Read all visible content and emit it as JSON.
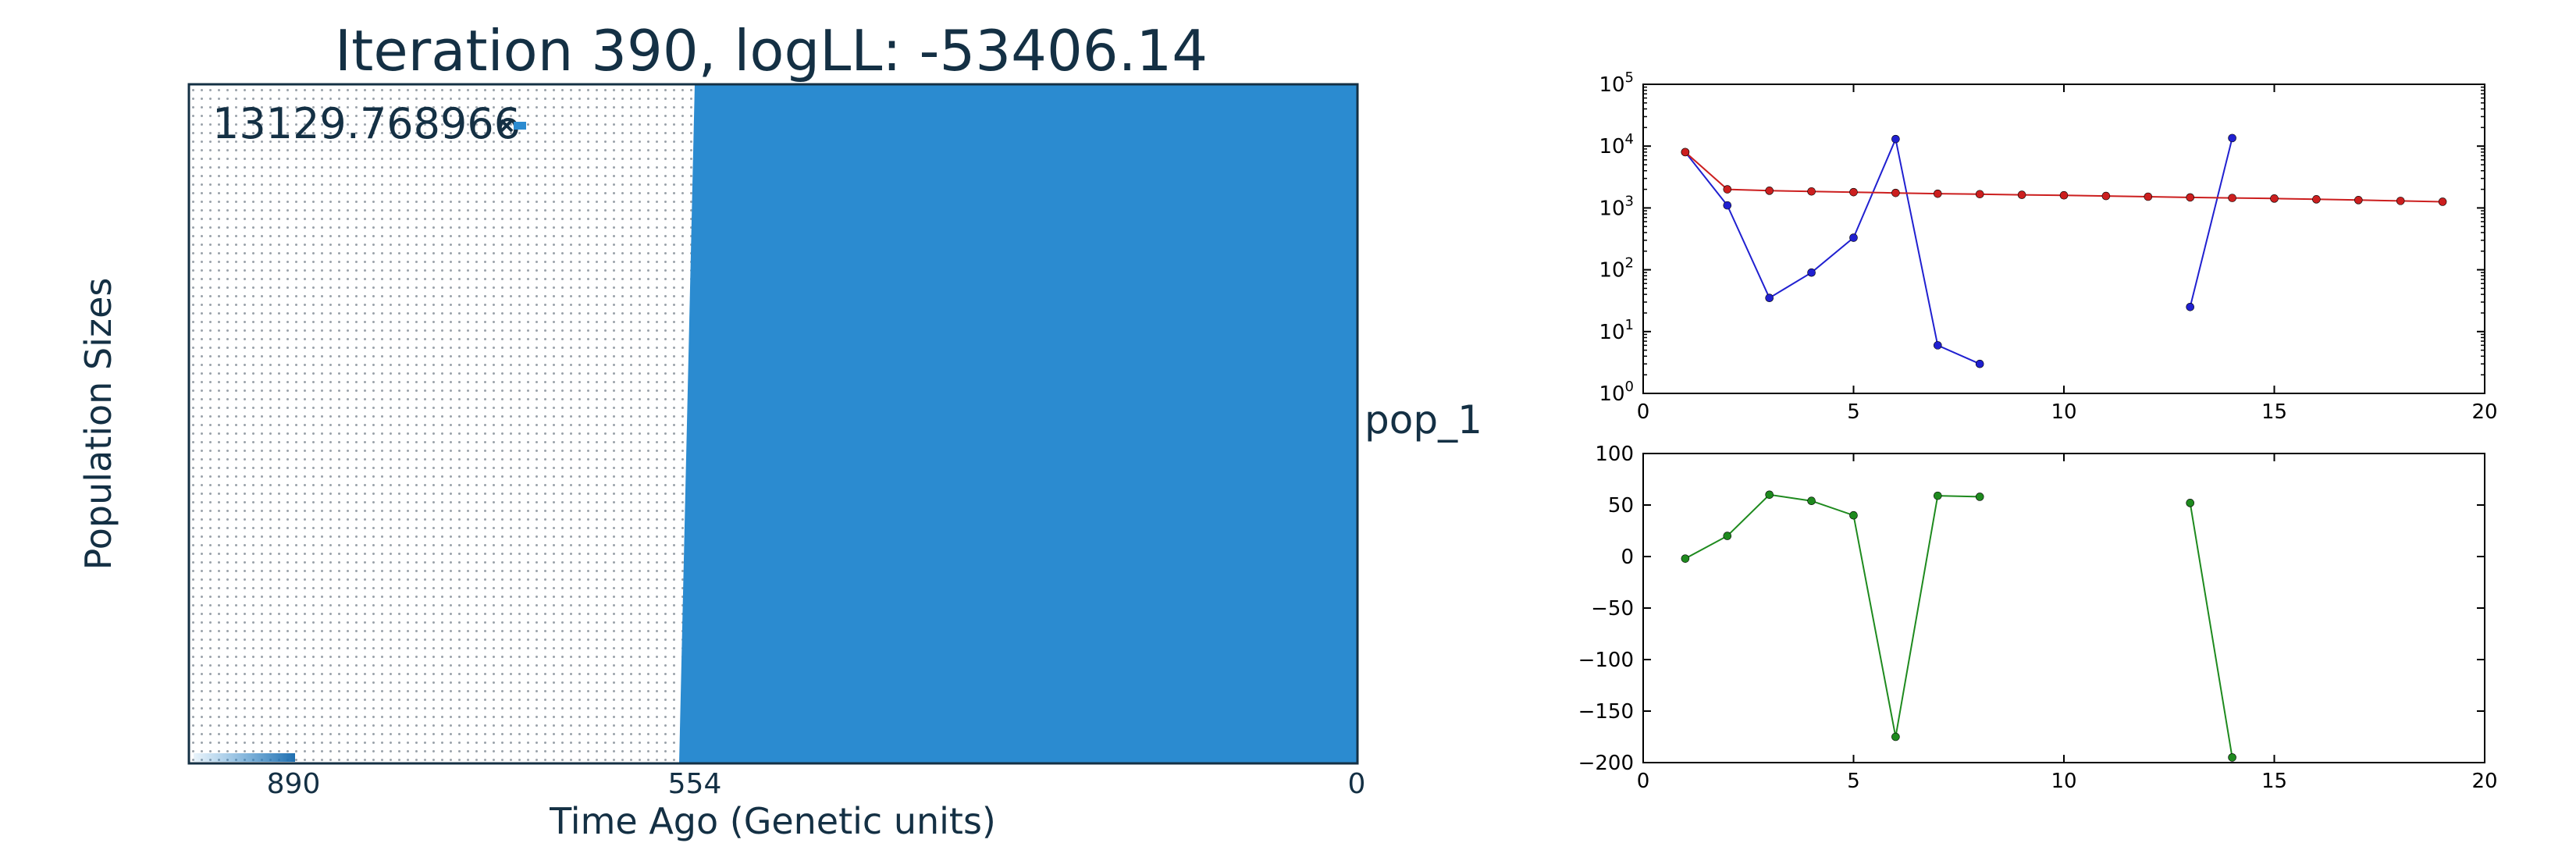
{
  "chart_data": [
    {
      "type": "area",
      "title": "Iteration 390, logLL:  -53406.14",
      "xlabel": "Time Ago (Genetic units)",
      "ylabel": "Population Sizes",
      "x_ticks": [
        "890",
        "554",
        "0"
      ],
      "series_label": "pop_1",
      "size_label": "13129.768966",
      "boundary_time": {
        "top": 554,
        "bottom": 554
      },
      "colors": {
        "fill": "#2b8bd0",
        "text": "#143044",
        "dots": "#9aa2aa"
      }
    },
    {
      "type": "line",
      "yscale": "log",
      "xlim": [
        0,
        20
      ],
      "ylim": [
        1,
        100000
      ],
      "x_ticks": [
        "0",
        "5",
        "10",
        "15",
        "20"
      ],
      "y_ticks": [
        {
          "base": "10",
          "exp": "0"
        },
        {
          "base": "10",
          "exp": "1"
        },
        {
          "base": "10",
          "exp": "2"
        },
        {
          "base": "10",
          "exp": "3"
        },
        {
          "base": "10",
          "exp": "4"
        },
        {
          "base": "10",
          "exp": "5"
        }
      ],
      "series": [
        {
          "color": "#2020d0",
          "points": [
            [
              1,
              8000
            ],
            [
              2,
              1100
            ],
            [
              3,
              35
            ],
            [
              4,
              90
            ],
            [
              5,
              330
            ],
            [
              6,
              13000
            ],
            [
              7,
              6
            ],
            [
              8,
              3
            ],
            [
              13,
              25
            ],
            [
              14,
              13500
            ]
          ],
          "segments": [
            [
              0,
              7
            ],
            [
              8,
              9
            ]
          ]
        },
        {
          "color": "#cc1f1f",
          "points": [
            [
              1,
              8000
            ],
            [
              2,
              2000
            ],
            [
              3,
              1900
            ],
            [
              4,
              1850
            ],
            [
              5,
              1800
            ],
            [
              6,
              1750
            ],
            [
              7,
              1700
            ],
            [
              8,
              1670
            ],
            [
              9,
              1630
            ],
            [
              10,
              1600
            ],
            [
              11,
              1560
            ],
            [
              12,
              1520
            ],
            [
              13,
              1480
            ],
            [
              14,
              1450
            ],
            [
              15,
              1420
            ],
            [
              16,
              1380
            ],
            [
              17,
              1340
            ],
            [
              18,
              1300
            ],
            [
              19,
              1260
            ]
          ],
          "segments": [
            [
              0,
              18
            ]
          ]
        }
      ]
    },
    {
      "type": "line",
      "xlim": [
        0,
        20
      ],
      "ylim": [
        -200,
        100
      ],
      "x_ticks": [
        "0",
        "5",
        "10",
        "15",
        "20"
      ],
      "y_ticks": [
        "100",
        "50",
        "0",
        "−50",
        "−100",
        "−150",
        "−200"
      ],
      "y_tick_values": [
        100,
        50,
        0,
        -50,
        -100,
        -150,
        -200
      ],
      "series": [
        {
          "color": "#1e8a1e",
          "points": [
            [
              1,
              -2
            ],
            [
              2,
              20
            ],
            [
              3,
              60
            ],
            [
              4,
              54
            ],
            [
              5,
              40
            ],
            [
              6,
              -175
            ],
            [
              7,
              59
            ],
            [
              8,
              58
            ],
            [
              13,
              52
            ],
            [
              14,
              -195
            ]
          ],
          "segments": [
            [
              0,
              7
            ],
            [
              8,
              9
            ]
          ]
        }
      ]
    }
  ]
}
